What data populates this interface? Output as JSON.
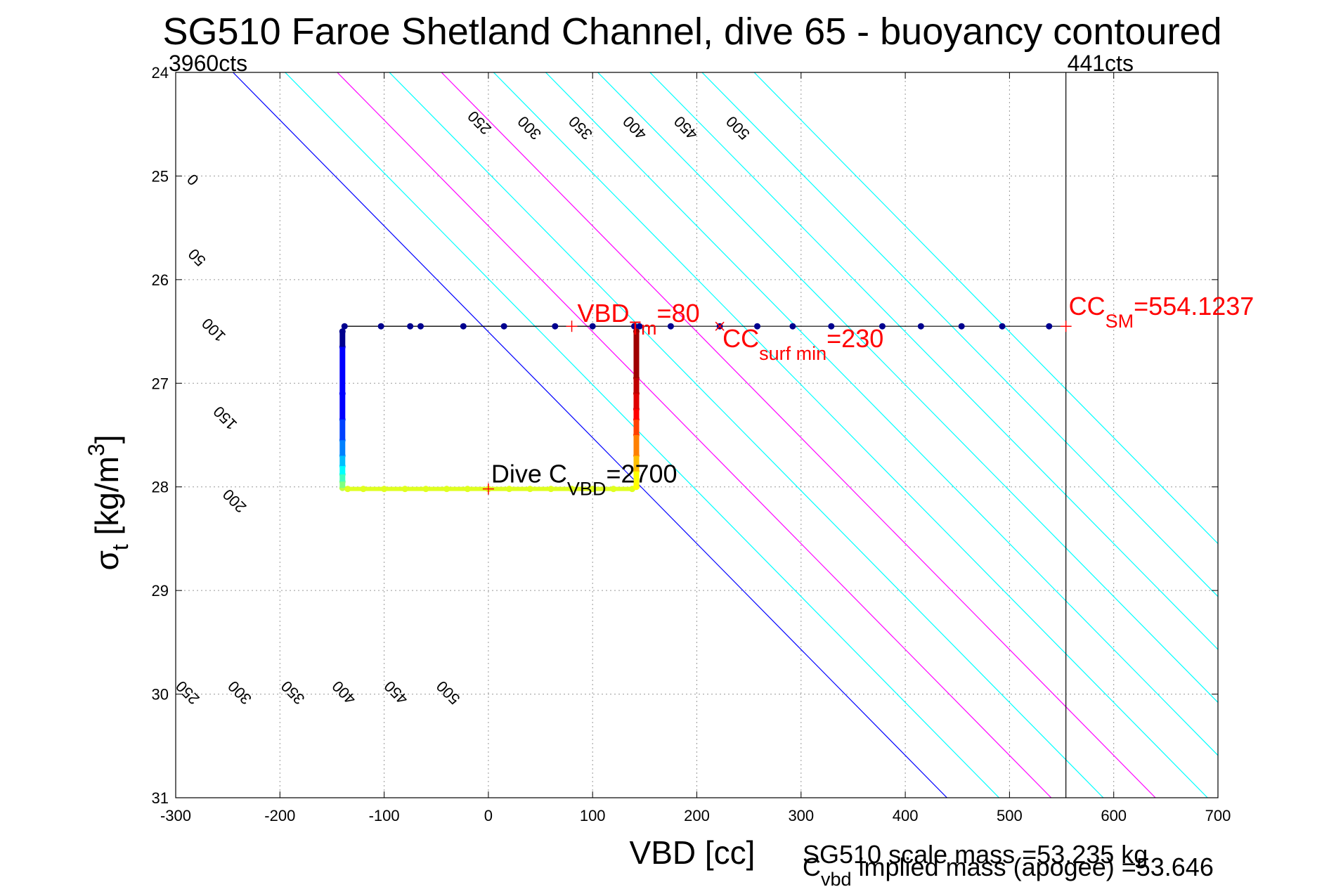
{
  "chart_data": {
    "type": "scatter",
    "title": "SG510 Faroe Shetland Channel, dive 65 - buoyancy contoured",
    "xlabel": "VBD [cc]",
    "ylabel": {
      "sym": "σ",
      "sub": "t",
      "unit": " [kg/m",
      "sup": "3",
      "close": "]"
    },
    "xlim": [
      -300,
      700
    ],
    "ylim": [
      24,
      31
    ],
    "y_reversed": true,
    "grid": true,
    "x_ticks": [
      -300,
      -200,
      -100,
      0,
      100,
      200,
      300,
      400,
      500,
      600,
      700
    ],
    "y_ticks": [
      24,
      25,
      26,
      27,
      28,
      29,
      30,
      31
    ],
    "x_tick_labels": [
      "-300",
      "-200",
      "-100",
      "0",
      "100",
      "200",
      "300",
      "400",
      "500",
      "600",
      "700"
    ],
    "y_tick_labels": [
      "24",
      "25",
      "26",
      "27",
      "28",
      "29",
      "30",
      "31"
    ],
    "cts_labels": {
      "left": "3960cts",
      "right": "441cts"
    },
    "right_vline_x": 554.1237,
    "contours": [
      {
        "value": "0",
        "color": "#0000ff",
        "x_at_24": -245,
        "x_at_31": 440
      },
      {
        "value": "50",
        "color": "#00ffff",
        "x_at_24": -195,
        "x_at_31": 490
      },
      {
        "value": "100",
        "color": "#ff00ff",
        "x_at_24": -145,
        "x_at_31": 540
      },
      {
        "value": "150",
        "color": "#00ffff",
        "x_at_24": -95,
        "x_at_31": 590
      },
      {
        "value": "200",
        "color": "#ff00ff",
        "x_at_24": -45,
        "x_at_31": 640
      },
      {
        "value": "250",
        "color": "#00ffff",
        "x_at_24": 5,
        "x_at_31": 690
      },
      {
        "value": "300",
        "color": "#00ffff",
        "x_at_24": 55,
        "x_at_31": 740
      },
      {
        "value": "350",
        "color": "#00ffff",
        "x_at_24": 105,
        "x_at_31": 790
      },
      {
        "value": "400",
        "color": "#00ffff",
        "x_at_24": 155,
        "x_at_31": 840
      },
      {
        "value": "450",
        "color": "#00ffff",
        "x_at_24": 205,
        "x_at_31": 890
      },
      {
        "value": "500",
        "color": "#00ffff",
        "x_at_24": 255,
        "x_at_31": 940
      }
    ],
    "contour_labels_top": [
      {
        "text": "0",
        "x": -280,
        "y": 25.0
      },
      {
        "text": "50",
        "x": -276,
        "y": 25.75
      },
      {
        "text": "100",
        "x": -260,
        "y": 26.45
      },
      {
        "text": "150",
        "x": -249,
        "y": 27.3
      },
      {
        "text": "200",
        "x": -240,
        "y": 28.1
      },
      {
        "text": "250",
        "x": -5,
        "y": 24.45
      },
      {
        "text": "300",
        "x": 43,
        "y": 24.5
      },
      {
        "text": "350",
        "x": 92,
        "y": 24.5
      },
      {
        "text": "400",
        "x": 144,
        "y": 24.5
      },
      {
        "text": "450",
        "x": 193,
        "y": 24.5
      },
      {
        "text": "500",
        "x": 243,
        "y": 24.5
      }
    ],
    "contour_labels_bottom": [
      {
        "text": "250",
        "x": -285,
        "y": 29.95
      },
      {
        "text": "300",
        "x": -235,
        "y": 29.95
      },
      {
        "text": "350",
        "x": -184,
        "y": 29.95
      },
      {
        "text": "400",
        "x": -135,
        "y": 29.95
      },
      {
        "text": "450",
        "x": -85,
        "y": 29.95
      },
      {
        "text": "500",
        "x": -35,
        "y": 29.95
      }
    ],
    "dive_path": [
      [
        -140,
        26.45
      ],
      [
        143,
        26.45
      ],
      [
        143,
        28.02
      ],
      [
        -140,
        28.02
      ],
      [
        -140,
        26.45
      ]
    ],
    "surface_line": [
      [
        -140,
        26.45
      ],
      [
        554,
        26.45
      ]
    ],
    "series": [
      {
        "segment": "surface",
        "color": "#00008f",
        "x": [
          -138,
          -103,
          -75,
          -65,
          -24,
          15,
          64,
          100,
          140,
          145,
          175,
          222,
          258,
          292,
          329,
          378,
          415,
          454,
          493,
          538
        ],
        "y": [
          26.45,
          26.45,
          26.45,
          26.45,
          26.45,
          26.45,
          26.45,
          26.45,
          26.45,
          26.45,
          26.45,
          26.45,
          26.45,
          26.45,
          26.45,
          26.45,
          26.45,
          26.45,
          26.45,
          26.45
        ]
      },
      {
        "segment": "descent",
        "colors": [
          "#00008f",
          "#0000ff",
          "#0000ff",
          "#0040ff",
          "#0080ff",
          "#00bfff",
          "#00ffff",
          "#40ffbf",
          "#80ff80",
          "#bfff40"
        ],
        "x": [
          -140,
          -140,
          -140,
          -140,
          -140,
          -140,
          -140,
          -140,
          -140,
          -140
        ],
        "y": [
          26.5,
          26.65,
          27.1,
          27.35,
          27.55,
          27.7,
          27.8,
          27.88,
          27.95,
          28.01
        ]
      },
      {
        "segment": "apogee",
        "color": "#dfff20",
        "x": [
          -135,
          -120,
          -100,
          -80,
          -60,
          -40,
          -20,
          0,
          20,
          40,
          60,
          80,
          100,
          120,
          138
        ],
        "y": [
          28.02,
          28.02,
          28.02,
          28.02,
          28.02,
          28.02,
          28.02,
          28.02,
          28.02,
          28.02,
          28.02,
          28.02,
          28.02,
          28.02,
          28.02
        ]
      },
      {
        "segment": "climb",
        "colors": [
          "#ffff00",
          "#ffbf00",
          "#ff8000",
          "#ff4000",
          "#ff0000",
          "#df0000",
          "#bf0000",
          "#9f0000",
          "#800000"
        ],
        "x": [
          142,
          142,
          142,
          142,
          142,
          142,
          142,
          142,
          142
        ],
        "y": [
          28.0,
          27.85,
          27.7,
          27.5,
          27.35,
          27.25,
          27.1,
          26.95,
          26.5
        ]
      }
    ],
    "annotations": {
      "vbd_tm": {
        "main": "VBD",
        "sub": "Tm",
        "tail": "=80",
        "color": "#ff0000",
        "x": 80,
        "y": 26.45
      },
      "cc_surf": {
        "main": "CC",
        "sub": "surf min",
        "tail": "=230",
        "color": "#ff0000",
        "x": 222,
        "y": 26.45
      },
      "cc_sm": {
        "main": "CC",
        "sub": "SM",
        "tail": "=554.1237",
        "color": "#ff0000",
        "x": 554.1237,
        "y": 26.45
      },
      "dive_cvbd": {
        "main": "Dive C",
        "sub": "VBD",
        "tail": "=2700",
        "color": "#000000",
        "x": 0,
        "y": 28.02
      }
    },
    "footer": {
      "scale_mass": "SG510 scale mass =53.235 kg",
      "implied_main": "C",
      "implied_sub": "vbd",
      "implied_tail": " implied mass (apogee) =53.646"
    }
  }
}
